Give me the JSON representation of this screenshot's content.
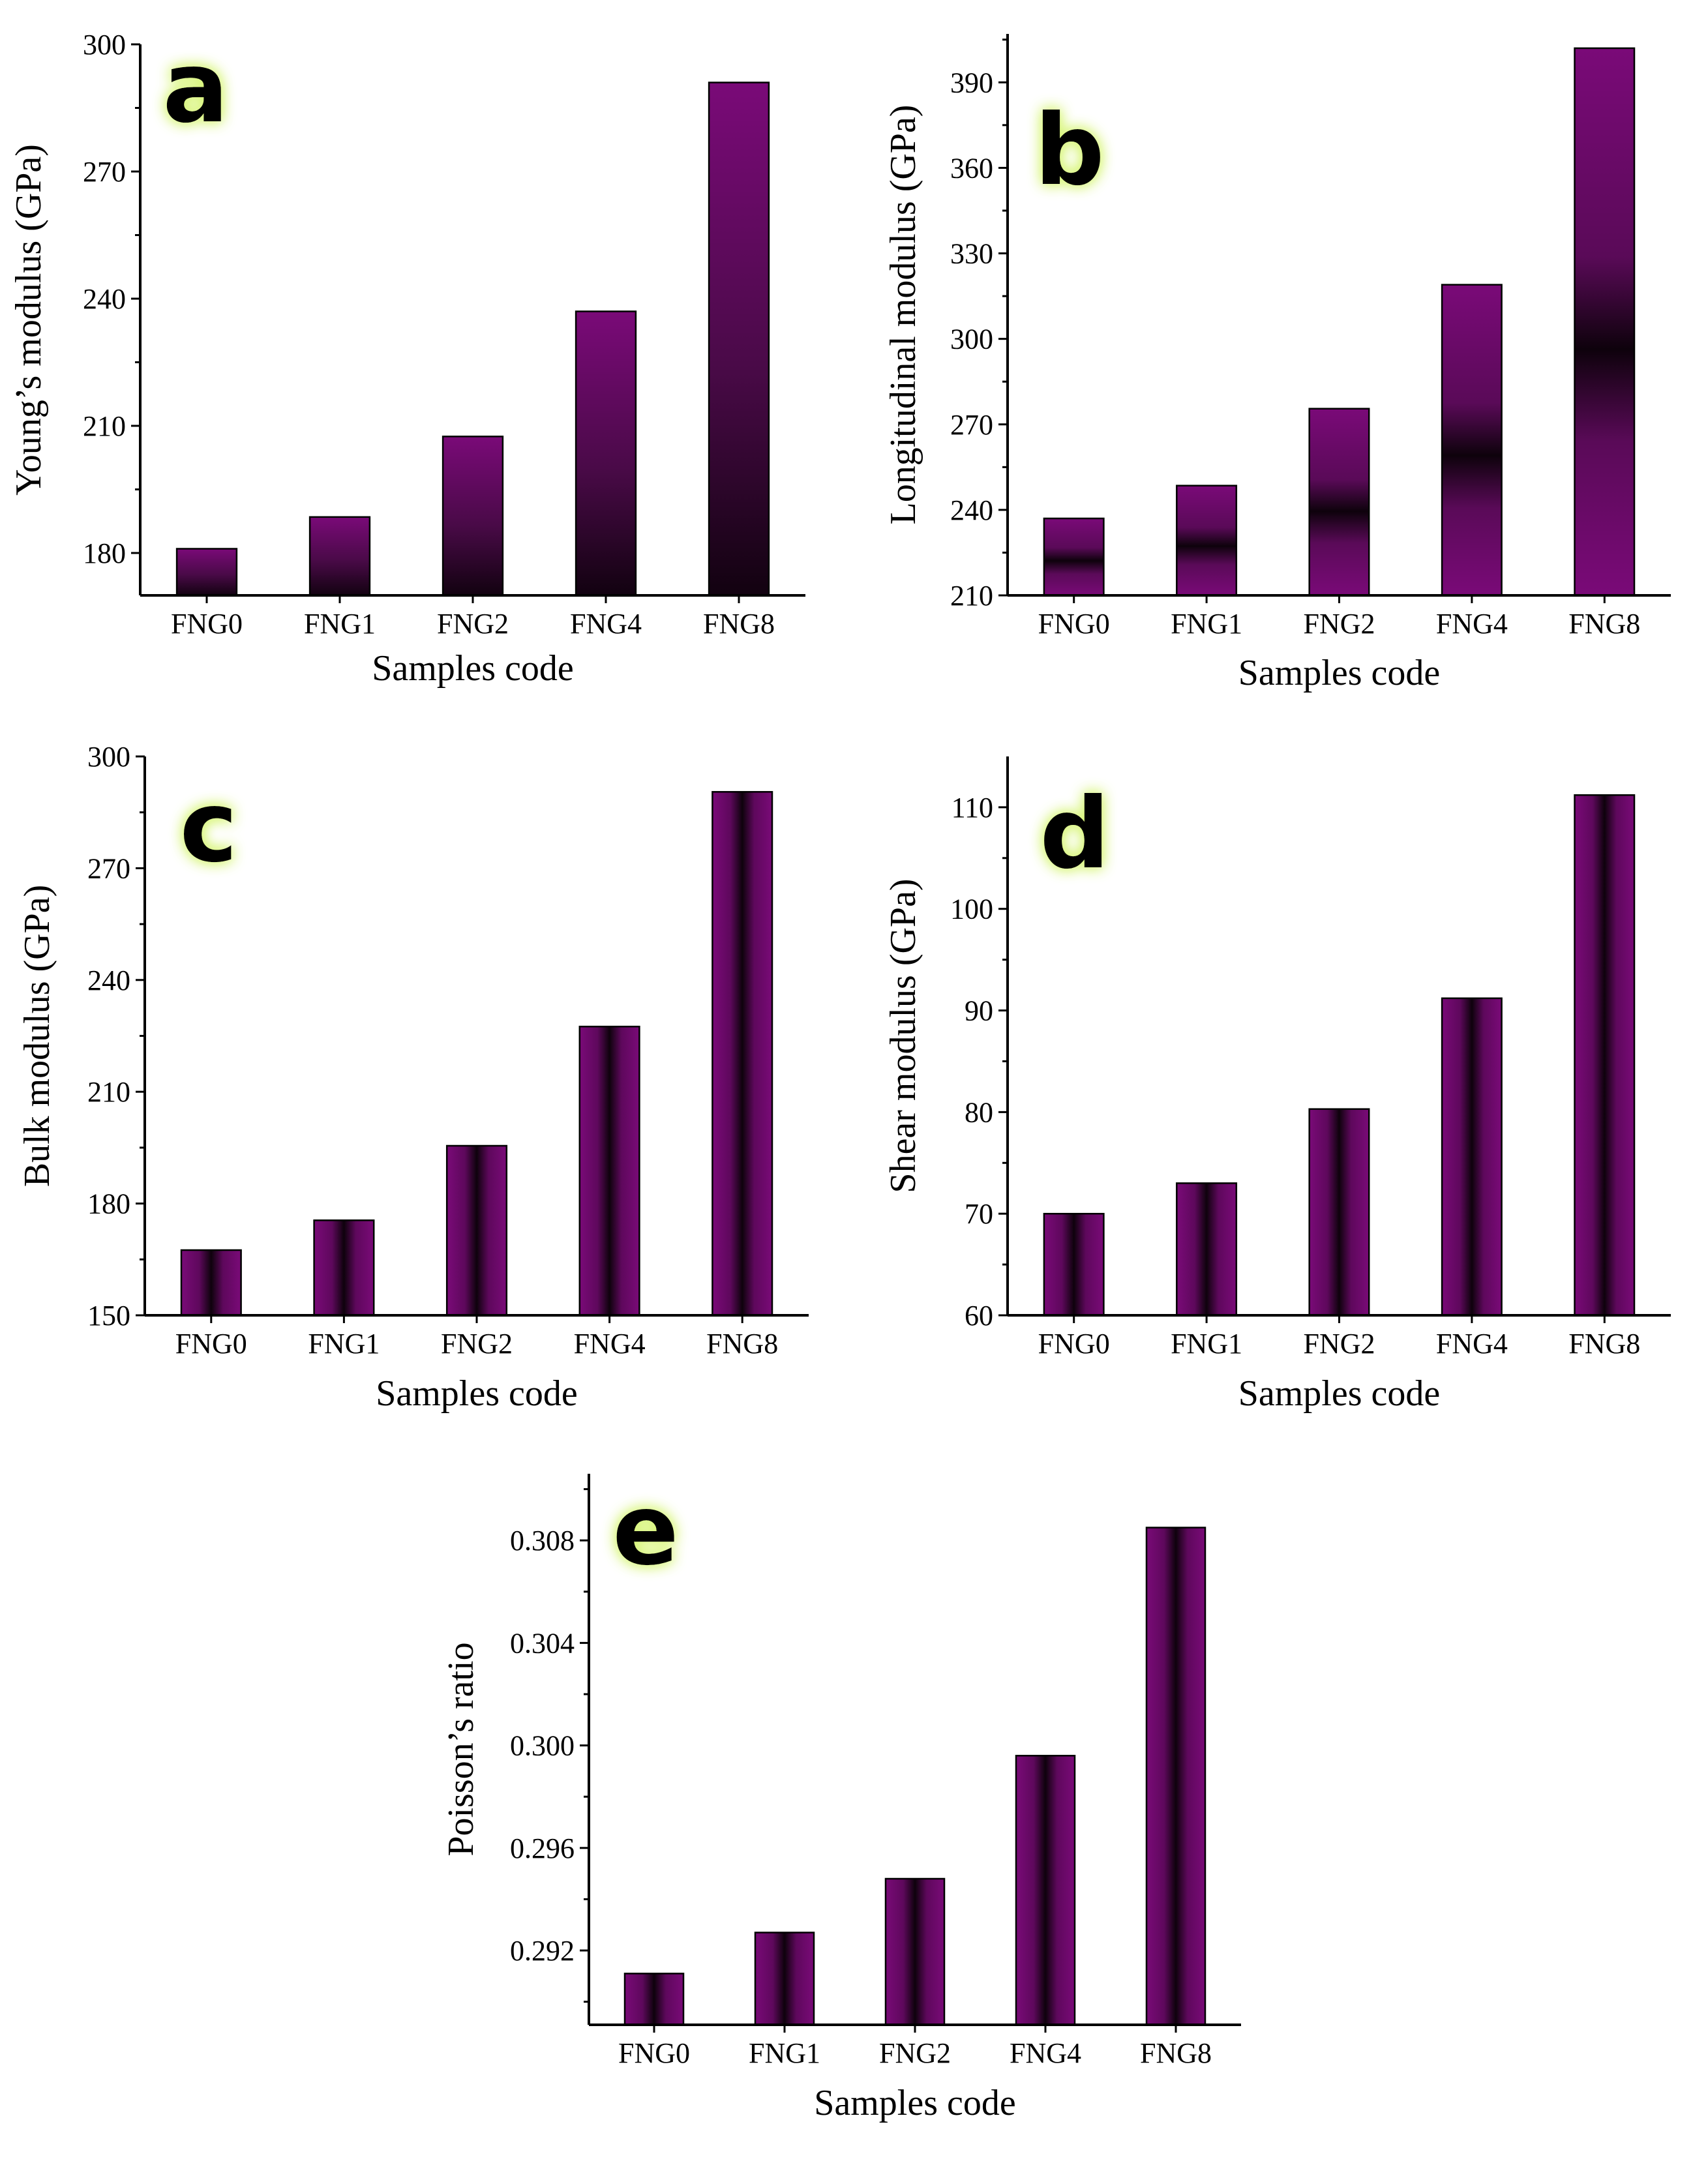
{
  "chart_data": [
    {
      "type": "bar",
      "panel": "a",
      "categories": [
        "FNG0",
        "FNG1",
        "FNG2",
        "FNG4",
        "FNG8"
      ],
      "values": [
        181,
        188.5,
        207.5,
        237,
        291
      ],
      "xlabel": "Samples code",
      "ylabel": "Young’s modulus (GPa)",
      "ylim": [
        170,
        300
      ],
      "yticks": [
        "180",
        "210",
        "240",
        "270",
        "300"
      ],
      "bar_color": "#7a0a78",
      "gradient": "vertical-light-top"
    },
    {
      "type": "bar",
      "panel": "b",
      "categories": [
        "FNG0",
        "FNG1",
        "FNG2",
        "FNG4",
        "FNG8"
      ],
      "values": [
        237,
        248.5,
        275.5,
        319,
        402
      ],
      "xlabel": "Samples code",
      "ylabel": "Longitudinal modulus (GPa)",
      "ylim": [
        210,
        407
      ],
      "yticks": [
        "210",
        "240",
        "270",
        "300",
        "330",
        "360",
        "390"
      ],
      "bar_color": "#7a0a78",
      "gradient": "vertical-dark-band"
    },
    {
      "type": "bar",
      "panel": "c",
      "categories": [
        "FNG0",
        "FNG1",
        "FNG2",
        "FNG4",
        "FNG8"
      ],
      "values": [
        167.5,
        175.5,
        195.5,
        227.5,
        290.5
      ],
      "xlabel": "Samples code",
      "ylabel": "Bulk modulus (GPa)",
      "ylim": [
        150,
        300
      ],
      "yticks": [
        "150",
        "180",
        "210",
        "240",
        "270",
        "300"
      ],
      "bar_color": "#7a0a78",
      "gradient": "horizontal-dark-center"
    },
    {
      "type": "bar",
      "panel": "d",
      "categories": [
        "FNG0",
        "FNG1",
        "FNG2",
        "FNG4",
        "FNG8"
      ],
      "values": [
        70,
        73,
        80.3,
        91.2,
        111.2
      ],
      "xlabel": "Samples code",
      "ylabel": "Shear modulus (GPa)",
      "ylim": [
        60,
        115
      ],
      "yticks": [
        "60",
        "70",
        "80",
        "90",
        "100",
        "110"
      ],
      "bar_color": "#7a0a78",
      "gradient": "horizontal-dark-center"
    },
    {
      "type": "bar",
      "panel": "e",
      "categories": [
        "FNG0",
        "FNG1",
        "FNG2",
        "FNG4",
        "FNG8"
      ],
      "values": [
        0.2911,
        0.2927,
        0.2948,
        0.2996,
        0.3085
      ],
      "xlabel": "Samples code",
      "ylabel": "Poisson’s ratio",
      "ylim": [
        0.2891,
        0.3106
      ],
      "yticks": [
        "0.292",
        "0.296",
        "0.300",
        "0.304",
        "0.308"
      ],
      "bar_color": "#7a0a78",
      "gradient": "horizontal-dark-center"
    }
  ]
}
